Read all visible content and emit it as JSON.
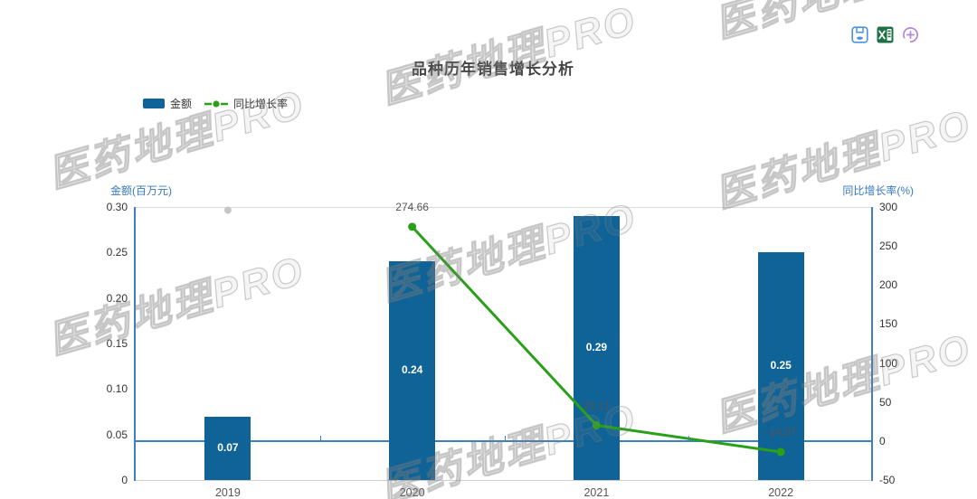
{
  "title": "品种历年销售增长分析",
  "toolbar": {
    "buttons": [
      {
        "icon": "save-icon",
        "color": "#4a90e2"
      },
      {
        "icon": "excel-export-icon",
        "color": "#1e7145"
      },
      {
        "icon": "add-chart-icon",
        "color": "#b287d8"
      }
    ]
  },
  "legend": [
    {
      "label": "金额",
      "type": "bar",
      "color": "#0f6396"
    },
    {
      "label": "同比增长率",
      "type": "line",
      "color": "#2aa019"
    }
  ],
  "watermark": {
    "text": "医药地理PRO"
  },
  "chart_data": {
    "type": "bar+line",
    "title": "品种历年销售增长分析",
    "categories": [
      "2019",
      "2020",
      "2021",
      "2022"
    ],
    "series": [
      {
        "name": "金额",
        "type": "bar",
        "axis": "left",
        "values": [
          0.07,
          0.24,
          0.29,
          0.25
        ],
        "color": "#0f6396",
        "label_color": "#ffffff"
      },
      {
        "name": "同比增长率",
        "type": "line",
        "axis": "right",
        "values": [
          null,
          274.66,
          20.11,
          -14.07
        ],
        "color": "#2aa019"
      }
    ],
    "axes": {
      "left": {
        "name": "金额(百万元)",
        "min": 0,
        "max": 0.3,
        "step": 0.05
      },
      "right": {
        "name": "同比增长率(%)",
        "min": -50,
        "max": 300,
        "step": 50
      }
    },
    "missing_point": {
      "category": "2019",
      "style": "gray-dot-at-top",
      "color": "#c6c6c6"
    },
    "zero_line": true,
    "legend_position": "top-left",
    "grid": false
  }
}
